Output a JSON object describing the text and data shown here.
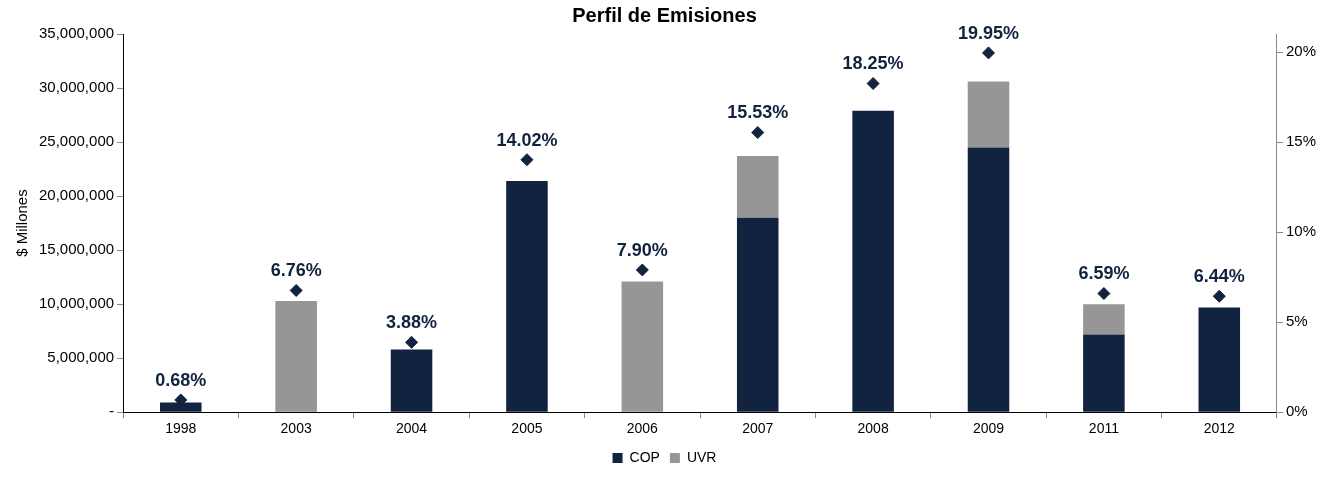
{
  "chart_data": {
    "type": "bar",
    "title": "Perfil de Emisiones",
    "ylabel": "$ Millones",
    "stacked": true,
    "legend": "bottom",
    "grid": false,
    "categories": [
      "1998",
      "2003",
      "2004",
      "2005",
      "2006",
      "2007",
      "2008",
      "2009",
      "2011",
      "2012"
    ],
    "ylim": [
      0,
      35000000
    ],
    "yticks": [
      {
        "value": 0,
        "label": "-"
      },
      {
        "value": 5000000,
        "label": "5,000,000"
      },
      {
        "value": 10000000,
        "label": "10,000,000"
      },
      {
        "value": 15000000,
        "label": "15,000,000"
      },
      {
        "value": 20000000,
        "label": "20,000,000"
      },
      {
        "value": 25000000,
        "label": "25,000,000"
      },
      {
        "value": 30000000,
        "label": "30,000,000"
      },
      {
        "value": 35000000,
        "label": "35,000,000"
      }
    ],
    "y2lim": [
      0,
      21
    ],
    "y2ticks": [
      {
        "value": 0,
        "label": "0%"
      },
      {
        "value": 5,
        "label": "5%"
      },
      {
        "value": 10,
        "label": "10%"
      },
      {
        "value": 15,
        "label": "15%"
      },
      {
        "value": 20,
        "label": "20%"
      }
    ],
    "series": [
      {
        "name": "COP",
        "color": "#12233f",
        "values": [
          900000,
          null,
          5800000,
          21400000,
          null,
          18000000,
          27900000,
          24500000,
          7200000,
          9700000
        ]
      },
      {
        "name": "UVR",
        "color": "#969696",
        "values": [
          null,
          10300000,
          null,
          null,
          12100000,
          5700000,
          null,
          6100000,
          2800000,
          null
        ]
      },
      {
        "type": "scatter",
        "axis": "y2",
        "color": "#12233f",
        "marker": "diamond",
        "values": [
          0.68,
          6.76,
          3.88,
          14.02,
          7.9,
          15.53,
          18.25,
          19.95,
          6.59,
          6.44
        ],
        "value_labels": [
          "0.68%",
          "6.76%",
          "3.88%",
          "14.02%",
          "7.90%",
          "15.53%",
          "18.25%",
          "19.95%",
          "6.59%",
          "6.44%"
        ]
      }
    ]
  }
}
